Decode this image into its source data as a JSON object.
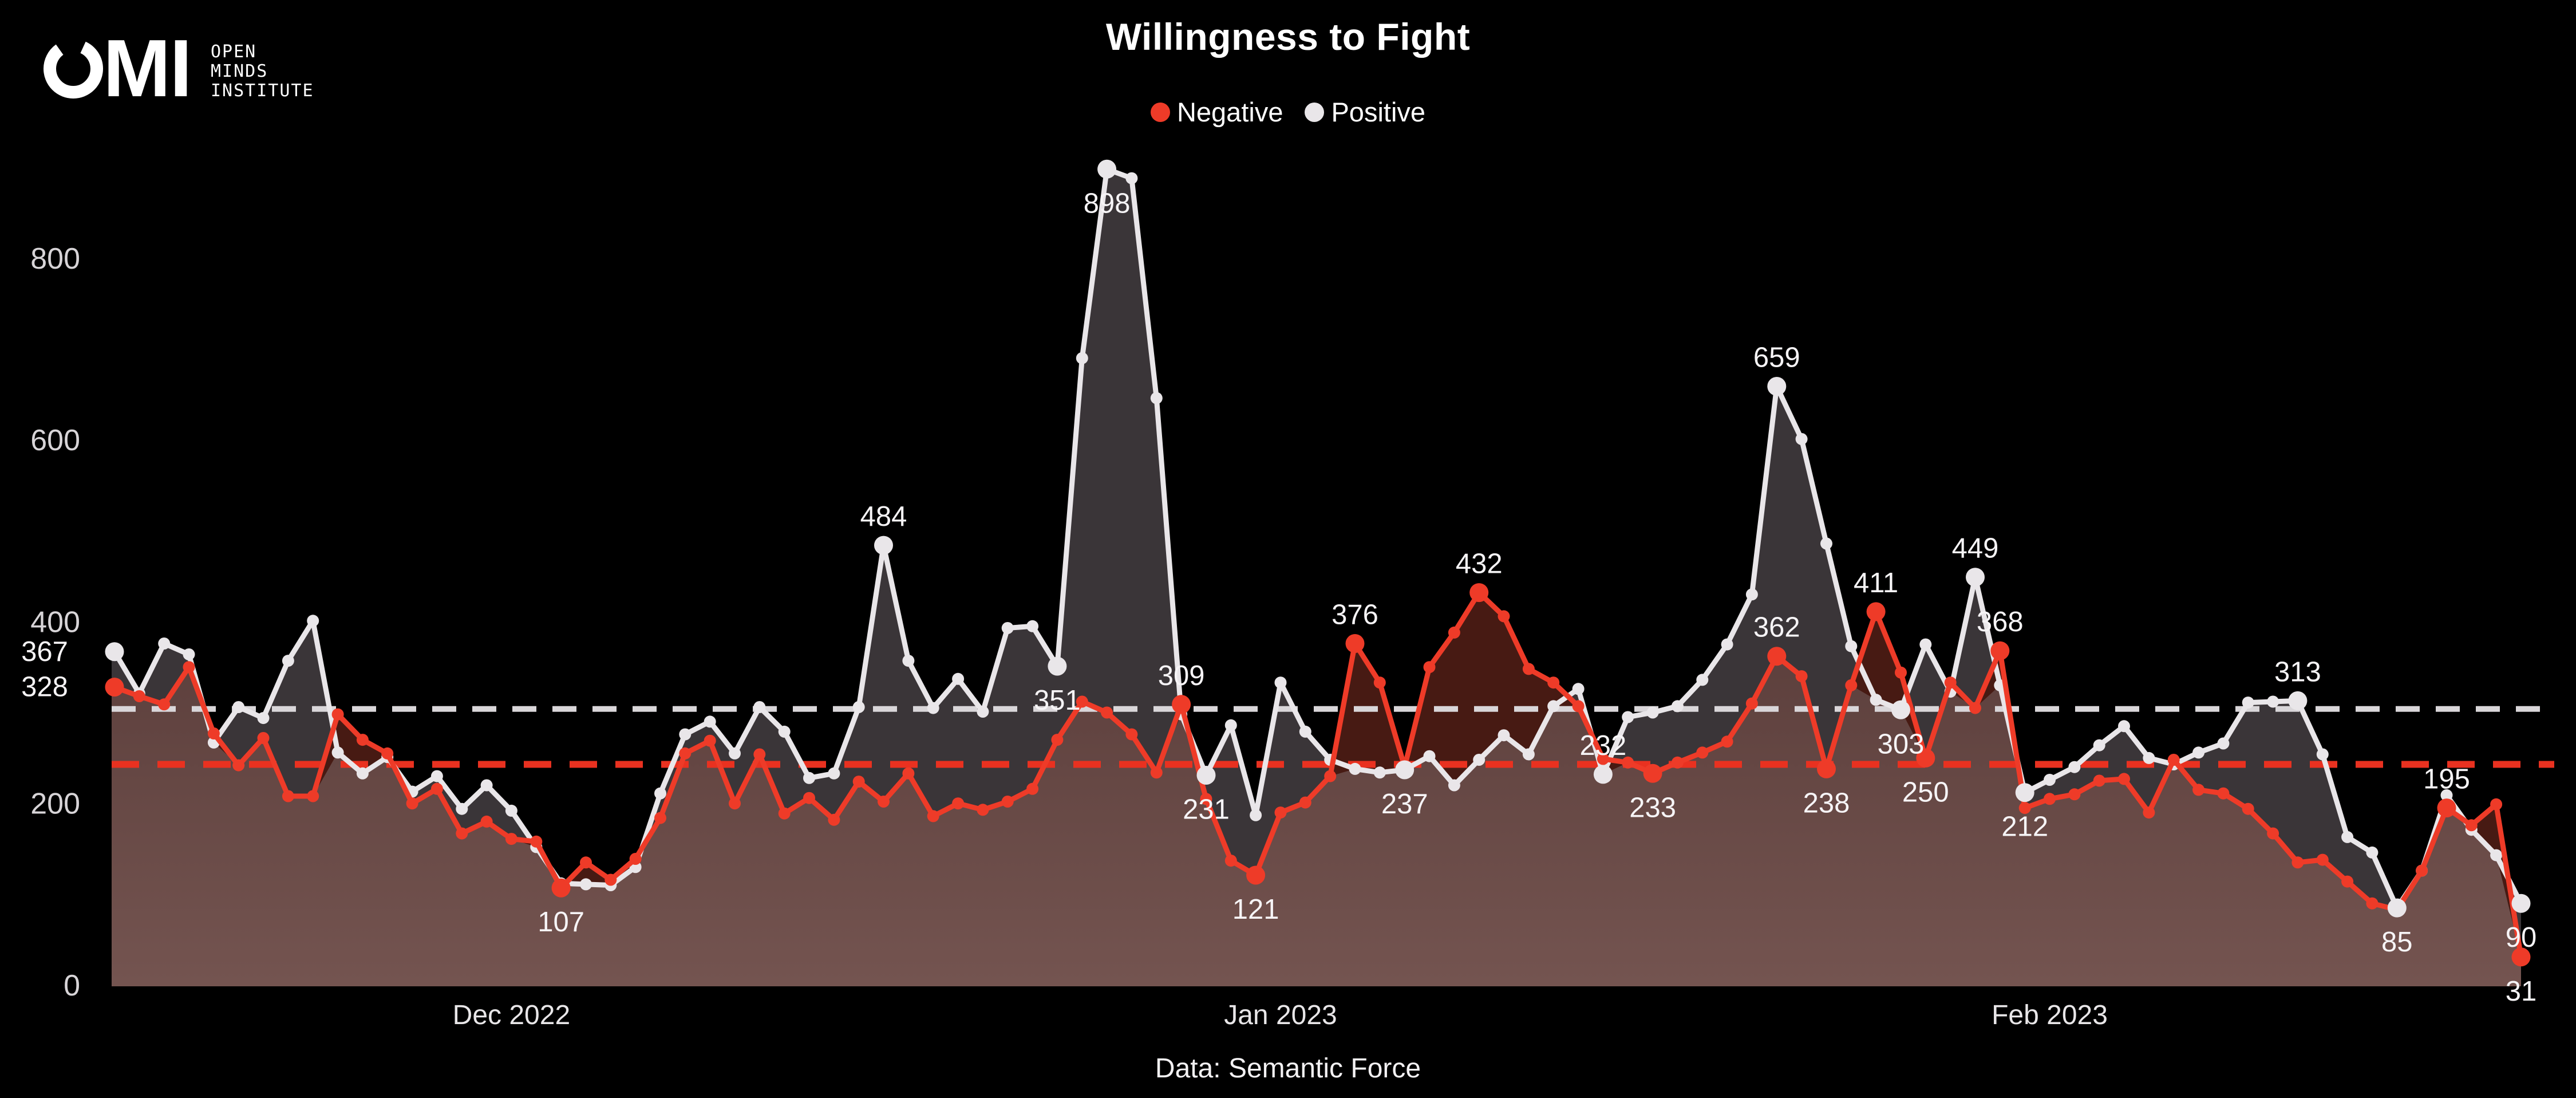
{
  "page": {
    "background": "#000000"
  },
  "logo": {
    "abbr": "MI",
    "line1": "OPEN",
    "line2": "MINDS",
    "line3": "INSTITUTE"
  },
  "header": {
    "title": "Willingness to Fight"
  },
  "legend": [
    {
      "label": "Negative",
      "color": "#ee3b28"
    },
    {
      "label": "Positive",
      "color": "#e9e6e9"
    }
  ],
  "footer": {
    "source": "Data: Semantic Force"
  },
  "chart_data": {
    "type": "line",
    "title": "Willingness to Fight",
    "start_date": "2022-11-15",
    "end_date": "2023-02-20",
    "frequency": "daily",
    "x_axis": {
      "tick_labels": [
        "Dec 2022",
        "Jan 2023",
        "Feb 2023"
      ],
      "tick_indices": [
        16,
        47,
        78
      ]
    },
    "y_axis": {
      "ticks": [
        0,
        200,
        400,
        600,
        800
      ],
      "range": [
        0,
        940
      ],
      "grid": false
    },
    "legend_position": "top-center",
    "fills": {
      "below_min": [
        "#5d403d",
        "#745450"
      ],
      "positive_over_negative": "#3a3538",
      "negative_over_positive": "#471a13"
    },
    "series": [
      {
        "name": "Positive",
        "color": "#e9e6e9",
        "label_color": "#f6f4f6",
        "avg_line": 304,
        "avg_line_color": "#d9d6d9",
        "values": [
          367,
          321,
          376,
          364,
          267,
          306,
          294,
          357,
          401,
          256,
          233,
          251,
          213,
          230,
          194,
          220,
          192,
          152,
          112,
          111,
          110,
          130,
          211,
          276,
          290,
          255,
          306,
          279,
          228,
          233,
          306,
          484,
          357,
          305,
          337,
          301,
          393,
          395,
          351,
          690,
          898,
          888,
          646,
          298,
          231,
          286,
          187,
          333,
          279,
          248,
          238,
          234,
          237,
          252,
          220,
          248,
          275,
          254,
          307,
          326,
          232,
          295,
          300,
          307,
          336,
          375,
          430,
          659,
          601,
          486,
          373,
          314,
          303,
          375,
          323,
          449,
          330,
          212,
          226,
          240,
          264,
          285,
          250,
          243,
          256,
          266,
          311,
          312,
          313,
          254,
          163,
          146,
          85,
          126,
          209,
          171,
          143,
          90
        ],
        "labels": [
          {
            "i": 0,
            "v": 367,
            "pos": "left"
          },
          {
            "i": 31,
            "v": 484,
            "pos": "above"
          },
          {
            "i": 38,
            "v": 351,
            "pos": "below"
          },
          {
            "i": 40,
            "v": 898,
            "pos": "below"
          },
          {
            "i": 44,
            "v": 231,
            "pos": "below"
          },
          {
            "i": 52,
            "v": 237,
            "pos": "below"
          },
          {
            "i": 60,
            "v": 232,
            "pos": "above"
          },
          {
            "i": 67,
            "v": 659,
            "pos": "above"
          },
          {
            "i": 72,
            "v": 303,
            "pos": "below"
          },
          {
            "i": 75,
            "v": 449,
            "pos": "above"
          },
          {
            "i": 77,
            "v": 212,
            "pos": "below"
          },
          {
            "i": 88,
            "v": 313,
            "pos": "above"
          },
          {
            "i": 92,
            "v": 85,
            "pos": "below"
          },
          {
            "i": 97,
            "v": 90,
            "pos": "below"
          }
        ]
      },
      {
        "name": "Negative",
        "color": "#ee3b28",
        "label_color": "#f6f4f6",
        "avg_line": 243,
        "avg_line_color": "#e93120",
        "values": [
          328,
          318,
          309,
          350,
          277,
          242,
          272,
          208,
          208,
          298,
          270,
          255,
          200,
          216,
          167,
          180,
          161,
          158,
          107,
          135,
          116,
          139,
          184,
          255,
          269,
          200,
          254,
          189,
          206,
          182,
          224,
          202,
          233,
          186,
          200,
          193,
          202,
          216,
          270,
          312,
          300,
          276,
          234,
          309,
          205,
          137,
          121,
          190,
          201,
          230,
          376,
          333,
          240,
          350,
          388,
          432,
          406,
          348,
          333,
          307,
          249,
          245,
          233,
          245,
          256,
          268,
          310,
          362,
          340,
          238,
          330,
          411,
          344,
          250,
          333,
          305,
          368,
          195,
          205,
          210,
          225,
          227,
          190,
          248,
          215,
          211,
          194,
          167,
          135,
          138,
          114,
          90,
          83,
          126,
          195,
          176,
          199,
          31
        ],
        "labels": [
          {
            "i": 0,
            "v": 328,
            "pos": "left"
          },
          {
            "i": 18,
            "v": 107,
            "pos": "below"
          },
          {
            "i": 43,
            "v": 309,
            "pos": "above"
          },
          {
            "i": 46,
            "v": 121,
            "pos": "below"
          },
          {
            "i": 50,
            "v": 376,
            "pos": "above"
          },
          {
            "i": 55,
            "v": 432,
            "pos": "above"
          },
          {
            "i": 62,
            "v": 233,
            "pos": "below"
          },
          {
            "i": 67,
            "v": 362,
            "pos": "above"
          },
          {
            "i": 69,
            "v": 238,
            "pos": "below"
          },
          {
            "i": 71,
            "v": 411,
            "pos": "above"
          },
          {
            "i": 73,
            "v": 250,
            "pos": "below"
          },
          {
            "i": 76,
            "v": 368,
            "pos": "above"
          },
          {
            "i": 94,
            "v": 195,
            "pos": "above"
          },
          {
            "i": 97,
            "v": 31,
            "pos": "below"
          }
        ]
      }
    ]
  }
}
